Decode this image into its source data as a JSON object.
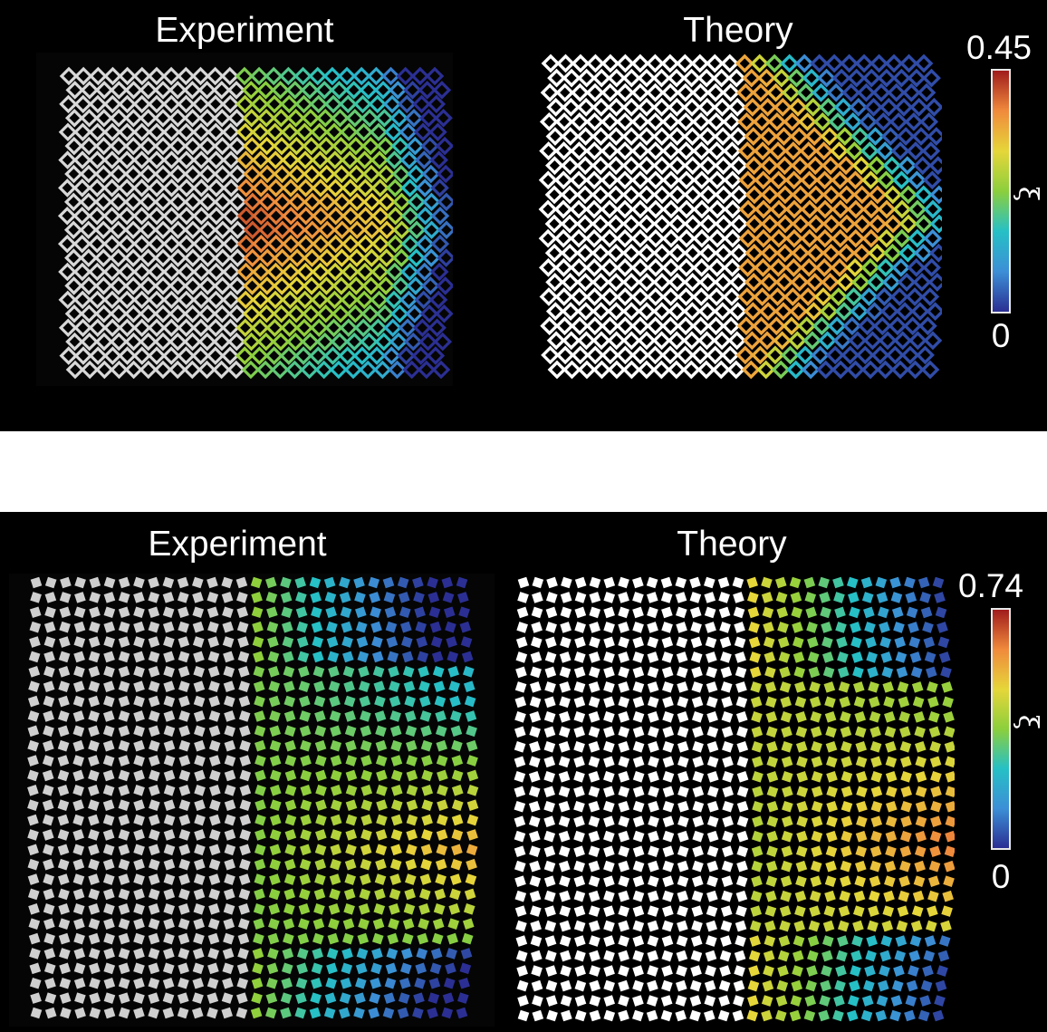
{
  "panels": [
    {
      "id": "top",
      "left_title": "Experiment",
      "right_title": "Theory",
      "colorbar": {
        "max_label": "0.45",
        "min_label": "0",
        "symbol": "ξ"
      }
    },
    {
      "id": "bottom",
      "left_title": "Experiment",
      "right_title": "Theory",
      "colorbar": {
        "max_label": "0.74",
        "min_label": "0",
        "symbol": "ξ"
      }
    }
  ],
  "colors": {
    "background": "#000000",
    "undeformed": "#ffffff",
    "colormap": [
      "#2b2f93",
      "#3c8fd6",
      "#26c0c6",
      "#8ccf3c",
      "#e6d63a",
      "#f08a3c",
      "#a01c1c"
    ]
  }
}
